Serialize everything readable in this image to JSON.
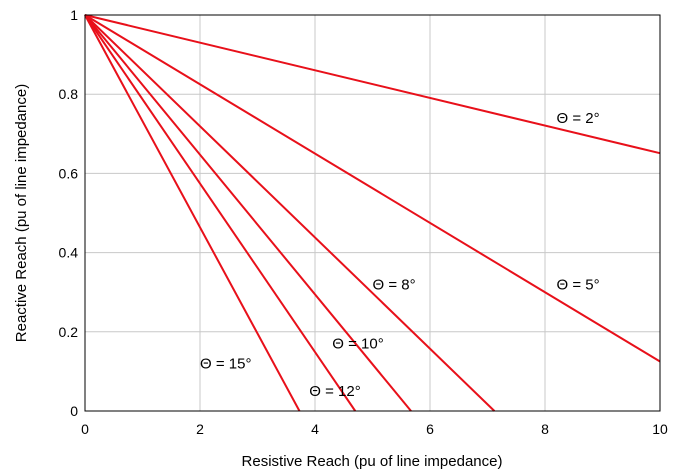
{
  "chart_data": {
    "type": "line",
    "title": "",
    "xlabel": "Resistive Reach (pu of line impedance)",
    "ylabel": "Reactive Reach (pu of line impedance)",
    "xlim": [
      0,
      10
    ],
    "ylim": [
      0,
      1
    ],
    "xticks": [
      0,
      2,
      4,
      6,
      8,
      10
    ],
    "yticks": [
      0,
      0.2,
      0.4,
      0.6,
      0.8,
      1
    ],
    "ytick_labels": [
      "0",
      "0.2",
      "0.4",
      "0.6",
      "0.8",
      "1"
    ],
    "grid": true,
    "legend": "none",
    "line_color": "#e8101a",
    "series": [
      {
        "name": "Θ = 2°",
        "x": [
          0,
          10
        ],
        "y": [
          1,
          0.651
        ],
        "label_at": [
          8.2,
          0.74
        ]
      },
      {
        "name": "Θ = 5°",
        "x": [
          0,
          10
        ],
        "y": [
          1,
          0.125
        ],
        "label_at": [
          8.2,
          0.32
        ]
      },
      {
        "name": "Θ = 8°",
        "x": [
          0,
          7.12
        ],
        "y": [
          1,
          0
        ],
        "label_at": [
          5.0,
          0.32
        ]
      },
      {
        "name": "Θ = 10°",
        "x": [
          0,
          5.67
        ],
        "y": [
          1,
          0
        ],
        "label_at": [
          4.3,
          0.17
        ]
      },
      {
        "name": "Θ = 12°",
        "x": [
          0,
          4.7
        ],
        "y": [
          1,
          0
        ],
        "label_at": [
          3.9,
          0.05
        ]
      },
      {
        "name": "Θ = 15°",
        "x": [
          0,
          3.73
        ],
        "y": [
          1,
          0
        ],
        "label_at": [
          2.0,
          0.12
        ]
      }
    ]
  }
}
